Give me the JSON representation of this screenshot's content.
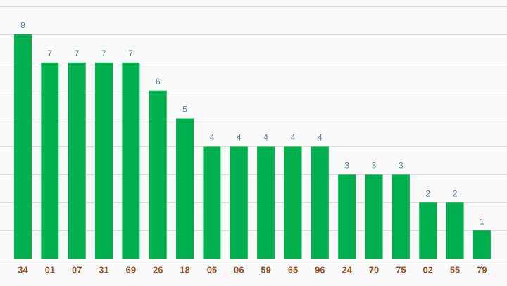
{
  "chart_data": {
    "type": "bar",
    "categories": [
      "34",
      "01",
      "07",
      "31",
      "69",
      "26",
      "18",
      "05",
      "06",
      "59",
      "65",
      "96",
      "24",
      "70",
      "75",
      "02",
      "55",
      "79"
    ],
    "values": [
      8,
      7,
      7,
      7,
      7,
      6,
      5,
      4,
      4,
      4,
      4,
      4,
      3,
      3,
      3,
      2,
      2,
      1
    ],
    "color": "#00b04f",
    "ylim": [
      0,
      9
    ],
    "yticks": [
      0,
      1,
      2,
      3,
      4,
      5,
      6,
      7,
      8,
      9
    ],
    "grid": true
  }
}
